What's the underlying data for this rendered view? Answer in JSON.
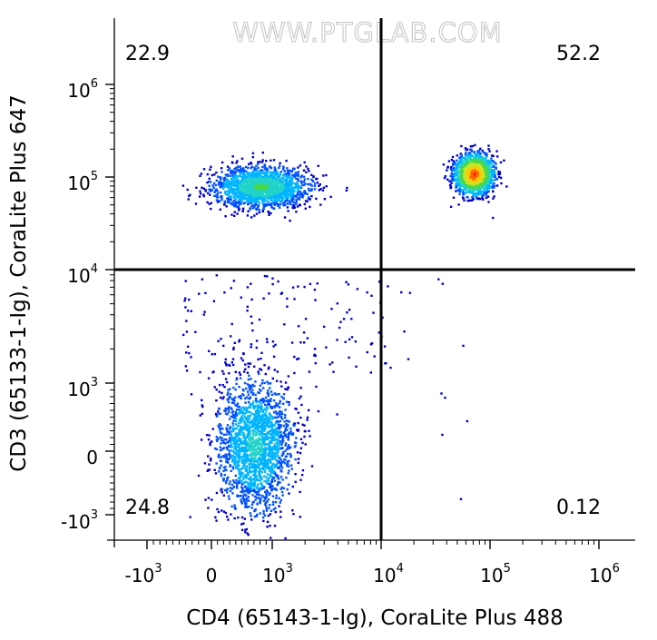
{
  "watermark": "WWW.PTGLAB.COM",
  "chart_data": {
    "type": "scatter",
    "title": "",
    "xlabel": "CD4 (65143-1-Ig), CoraLite Plus 488",
    "ylabel": "CD3 (65133-1-Ig), CoraLite Plus 647",
    "x_scale": "biexponential",
    "y_scale": "biexponential",
    "x_ticks": [
      {
        "base": "-10",
        "exp": "3"
      },
      {
        "base": "0",
        "exp": ""
      },
      {
        "base": "10",
        "exp": "3"
      },
      {
        "base": "10",
        "exp": "4"
      },
      {
        "base": "10",
        "exp": "5"
      },
      {
        "base": "10",
        "exp": "6"
      }
    ],
    "y_ticks": [
      {
        "base": "-10",
        "exp": "3"
      },
      {
        "base": "0",
        "exp": ""
      },
      {
        "base": "10",
        "exp": "3"
      },
      {
        "base": "10",
        "exp": "4"
      },
      {
        "base": "10",
        "exp": "5"
      },
      {
        "base": "10",
        "exp": "6"
      }
    ],
    "gate": {
      "x": 10000,
      "y": 10000
    },
    "quadrants": [
      {
        "id": "upper-left",
        "percent": "22.9"
      },
      {
        "id": "upper-right",
        "percent": "52.2"
      },
      {
        "id": "lower-left",
        "percent": "24.8"
      },
      {
        "id": "lower-right",
        "percent": "0.12"
      }
    ],
    "populations": [
      {
        "id": "cd3-pos-cd4-neg",
        "x_center": 800,
        "y_center": 80000,
        "x_spread": 0.22,
        "y_spread": 0.11,
        "count": 1700,
        "peak_color": "#22b830"
      },
      {
        "id": "cd3-pos-cd4-pos",
        "x_center": 70000,
        "y_center": 110000,
        "x_spread": 0.09,
        "y_spread": 0.11,
        "count": 1500,
        "peak_color": "#e81010"
      },
      {
        "id": "cd3-neg-cd4-neg",
        "x_center": 700,
        "y_center": 100,
        "x_spread": 0.16,
        "y_spread": 0.3,
        "count": 1900,
        "peak_color": "#2ab8c8"
      }
    ],
    "grid": false,
    "density_colors": [
      "#0000c8",
      "#0050ff",
      "#00b4ff",
      "#20d2c8",
      "#48d848",
      "#c8e628",
      "#ffc800",
      "#ff6400",
      "#e61414"
    ]
  }
}
